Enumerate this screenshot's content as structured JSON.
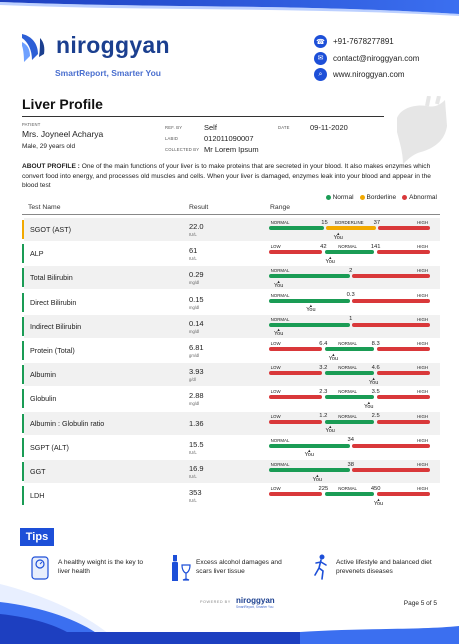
{
  "brand": {
    "name": "niroggyan",
    "tagline": "SmartReport, Smarter You"
  },
  "contact": [
    {
      "icon": "phone-icon",
      "text": "+91-7678277891"
    },
    {
      "icon": "mail-icon",
      "text": "contact@niroggyan.com"
    },
    {
      "icon": "web-icon",
      "text": "www.niroggyan.com"
    }
  ],
  "title": "Liver Profile",
  "patient": {
    "patient_label": "PATIENT",
    "name": "Mrs. Joyneel Acharya",
    "info": "Male, 29 years old",
    "ref_label": "REF. BY",
    "ref_value": "Self",
    "date_label": "DATE",
    "date_value": "09-11-2020",
    "labid_label": "LABID",
    "labid_value": "012011090007",
    "collected_label": "COLLECTED BY",
    "collected_value": "Mr Lorem Ipsum"
  },
  "about": {
    "label": "ABOUT PROFILE :",
    "text": " One of the main functions of your liver is to make proteins that are secreted in your blood. It also makes enzymes which convert food into energy, and processes old muscles and cells. When your liver is damaged, enzymes leak into your blood and appear in the blood test"
  },
  "legend": [
    {
      "label": "Normal",
      "color": "#1a9c55"
    },
    {
      "label": "Borderline",
      "color": "#f2a900"
    },
    {
      "label": "Abnormal",
      "color": "#d9383a"
    }
  ],
  "table_headers": {
    "name": "Test Name",
    "result": "Result",
    "range": "Range"
  },
  "colors": {
    "green": "#1a9c55",
    "red": "#d9383a",
    "yellow": "#f2a900",
    "accent": "#1d4fd8",
    "brand": "#1b3f8f"
  },
  "tests": [
    {
      "name": "SGOT (AST)",
      "value": "22.0",
      "unit": "IU/L",
      "flag": "#f2a900",
      "layout": "nbh",
      "thresholds": [
        "15",
        "37"
      ],
      "labels": [
        "NORMAL",
        "BORDERLINE",
        "HIGH"
      ],
      "pos": 0.43
    },
    {
      "name": "ALP",
      "value": "61",
      "unit": "IU/L",
      "flag": "#1a9c55",
      "layout": "lnh",
      "thresholds": [
        "42",
        "141"
      ],
      "labels": [
        "LOW",
        "NORMAL",
        "HIGH"
      ],
      "pos": 0.38
    },
    {
      "name": "Total Bilirubin",
      "value": "0.29",
      "unit": "mg/dl",
      "flag": "#1a9c55",
      "layout": "nh",
      "thresholds": [
        "2"
      ],
      "labels": [
        "NORMAL",
        "HIGH"
      ],
      "pos": 0.06
    },
    {
      "name": "Direct Bilirubin",
      "value": "0.15",
      "unit": "mg/dl",
      "flag": "#1a9c55",
      "layout": "nh",
      "thresholds": [
        "0.3"
      ],
      "labels": [
        "NORMAL",
        "HIGH"
      ],
      "pos": 0.26
    },
    {
      "name": "Indirect Bilirubin",
      "value": "0.14",
      "unit": "mg/dl",
      "flag": "#1a9c55",
      "layout": "nh",
      "thresholds": [
        "1"
      ],
      "labels": [
        "NORMAL",
        "HIGH"
      ],
      "pos": 0.06
    },
    {
      "name": "Protein (Total)",
      "value": "6.81",
      "unit": "gm/dl",
      "flag": "#1a9c55",
      "layout": "lnh",
      "thresholds": [
        "6.4",
        "8.3"
      ],
      "labels": [
        "LOW",
        "NORMAL",
        "HIGH"
      ],
      "pos": 0.4
    },
    {
      "name": "Albumin",
      "value": "3.93",
      "unit": "g/dl",
      "flag": "#1a9c55",
      "layout": "lnh",
      "thresholds": [
        "3.2",
        "4.6"
      ],
      "labels": [
        "LOW",
        "NORMAL",
        "HIGH"
      ],
      "pos": 0.65
    },
    {
      "name": "Globulin",
      "value": "2.88",
      "unit": "mg/dl",
      "flag": "#1a9c55",
      "layout": "lnh",
      "thresholds": [
        "2.3",
        "3.5"
      ],
      "labels": [
        "LOW",
        "NORMAL",
        "HIGH"
      ],
      "pos": 0.62
    },
    {
      "name": "Albumin : Globulin ratio",
      "value": "1.36",
      "unit": "",
      "flag": "#1a9c55",
      "layout": "lnh",
      "thresholds": [
        "1.2",
        "2.5"
      ],
      "labels": [
        "LOW",
        "NORMAL",
        "HIGH"
      ],
      "pos": 0.38
    },
    {
      "name": "SGPT (ALT)",
      "value": "15.5",
      "unit": "IU/L",
      "flag": "#1a9c55",
      "layout": "nh",
      "thresholds": [
        "34"
      ],
      "labels": [
        "NORMAL",
        "HIGH"
      ],
      "pos": 0.25
    },
    {
      "name": "GGT",
      "value": "16.9",
      "unit": "IU/L",
      "flag": "#1a9c55",
      "layout": "nh",
      "thresholds": [
        "38"
      ],
      "labels": [
        "NORMAL",
        "HIGH"
      ],
      "pos": 0.3
    },
    {
      "name": "LDH",
      "value": "353",
      "unit": "IU/L",
      "flag": "#1a9c55",
      "layout": "lnh",
      "thresholds": [
        "225",
        "450"
      ],
      "labels": [
        "LOW",
        "NORMAL",
        "HIGH"
      ],
      "pos": 0.68
    }
  ],
  "marker_label": "You",
  "tips": {
    "title": "Tips",
    "items": [
      {
        "icon": "scale-icon",
        "text": "A healthy weight is the key to liver health"
      },
      {
        "icon": "alcohol-icon",
        "text": "Excess alcohol damages and scars liver tissue"
      },
      {
        "icon": "exercise-icon",
        "text": "Active lifestyle and balanced diet prevenets diseases"
      }
    ]
  },
  "footer": {
    "powered": "POWERED BY",
    "brand": "niroggyan",
    "sub": "SmartReport, Smarter You",
    "page": "Page 5 of 5"
  }
}
